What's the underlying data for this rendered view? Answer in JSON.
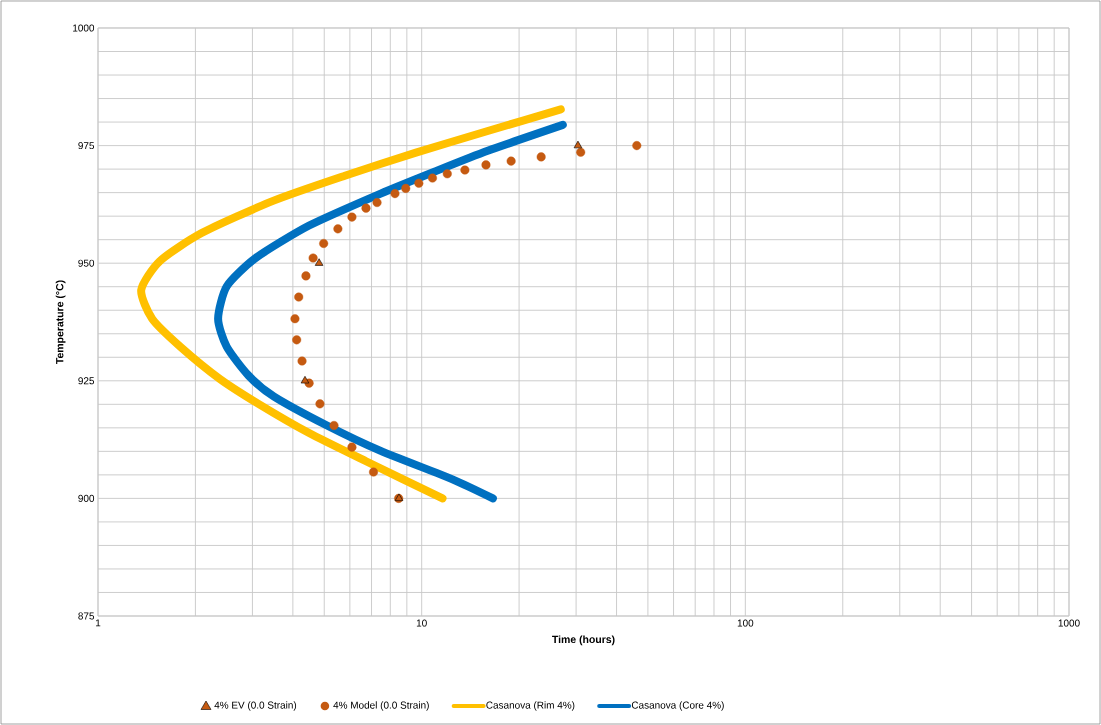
{
  "chart_data": {
    "type": "scatter",
    "xlabel": "Time (hours)",
    "ylabel": "Temperature (°C)",
    "log": "x",
    "xlim": [
      1,
      1000
    ],
    "xticks": [
      1,
      10,
      100,
      1000
    ],
    "ylim": [
      875,
      1000
    ],
    "yticks": [
      875,
      900,
      925,
      950,
      975,
      1000
    ],
    "grid": true,
    "legend": "bottom",
    "series": [
      {
        "name": "4% EV (0.0 Strain)",
        "marker": "triangle",
        "color": "#c55a11",
        "x": [
          30.4,
          4.82,
          4.36,
          8.51
        ],
        "values": [
          975,
          950,
          925,
          900
        ]
      },
      {
        "name": "4% Model (0.0 Strain)",
        "marker": "circle",
        "color": "#c55a11",
        "x": [
          46.2,
          31.0,
          23.4,
          18.9,
          15.8,
          13.6,
          12.0,
          10.8,
          9.8,
          8.93,
          8.27,
          7.28,
          6.73,
          6.09,
          5.51,
          4.98,
          4.62,
          4.39,
          4.17,
          4.06,
          4.11,
          4.27,
          4.49,
          4.85,
          5.36,
          6.09,
          7.1,
          8.49
        ],
        "values": [
          975,
          973.6,
          972.6,
          971.7,
          970.9,
          969.8,
          969.0,
          968.1,
          967.0,
          965.9,
          964.8,
          962.9,
          961.7,
          959.8,
          957.3,
          954.2,
          951.1,
          947.3,
          942.8,
          938.2,
          933.7,
          929.2,
          924.5,
          920.1,
          915.5,
          910.9,
          905.6,
          900
        ]
      },
      {
        "name": "Casanova (Rim 4%)",
        "type": "line",
        "marker": "none",
        "color": "#ffc000",
        "x": [
          26.9,
          16.0,
          9.6,
          5.79,
          3.49,
          2.09,
          1.55,
          1.36,
          1.47,
          1.8,
          2.38,
          3.15,
          4.49,
          6.73,
          11.6
        ],
        "values": [
          982.7,
          978.1,
          973.5,
          968.6,
          963.3,
          956.4,
          950.4,
          944.3,
          938.2,
          932.2,
          925.4,
          920.0,
          913.9,
          907.9,
          900
        ]
      },
      {
        "name": "Casanova (Core 4%)",
        "type": "line",
        "marker": "none",
        "color": "#0070c0",
        "x": [
          27.3,
          16.0,
          10.9,
          7.47,
          4.49,
          3.07,
          2.5,
          2.35,
          2.5,
          2.92,
          3.49,
          5.1,
          7.47,
          12.4,
          16.6
        ],
        "values": [
          979.4,
          973.9,
          969.4,
          964.8,
          958.0,
          951.1,
          945.1,
          938.2,
          932.2,
          926.1,
          921.7,
          915.5,
          910.1,
          904.1,
          900
        ]
      }
    ]
  }
}
